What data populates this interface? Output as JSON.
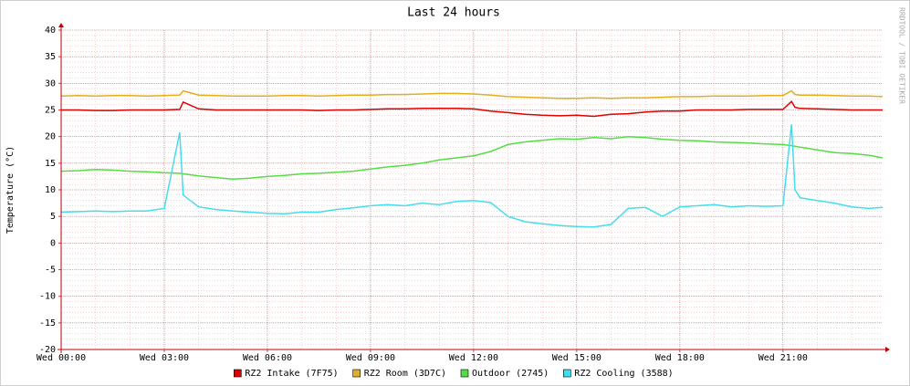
{
  "chart_data": {
    "type": "line",
    "title": "Last 24 hours",
    "y_label": "Temperature (°C)",
    "watermark": "RRDTOOL / TOBI OETIKER",
    "x": [
      0,
      0.5,
      1,
      1.5,
      2,
      2.5,
      3,
      3.45,
      3.55,
      4,
      4.5,
      5,
      5.5,
      6,
      6.5,
      7,
      7.5,
      8,
      8.5,
      9,
      9.5,
      10,
      10.5,
      11,
      11.5,
      12,
      12.5,
      13,
      13.5,
      14,
      14.5,
      15,
      15.5,
      16,
      16.5,
      17,
      17.5,
      18,
      18.5,
      19,
      19.5,
      20,
      20.5,
      21,
      21.25,
      21.35,
      21.5,
      22,
      22.5,
      23,
      23.5,
      23.9
    ],
    "xlim": [
      0,
      23.9
    ],
    "xticks": [
      {
        "value": 0,
        "label": "Wed 00:00"
      },
      {
        "value": 3,
        "label": "Wed 03:00"
      },
      {
        "value": 6,
        "label": "Wed 06:00"
      },
      {
        "value": 9,
        "label": "Wed 09:00"
      },
      {
        "value": 12,
        "label": "Wed 12:00"
      },
      {
        "value": 15,
        "label": "Wed 15:00"
      },
      {
        "value": 18,
        "label": "Wed 18:00"
      },
      {
        "value": 21,
        "label": "Wed 21:00"
      }
    ],
    "ylim": [
      -20,
      40
    ],
    "yticks": [
      -20,
      -15,
      -10,
      -5,
      0,
      5,
      10,
      15,
      20,
      25,
      30,
      35,
      40
    ],
    "grid": true,
    "legend": "bottom",
    "series": [
      {
        "name": "RZ2 Intake (7F75)",
        "color": "#e00000",
        "values": [
          25,
          25,
          24.9,
          24.9,
          25,
          25,
          25,
          25.1,
          26.5,
          25.2,
          25,
          25,
          25,
          25,
          25,
          25,
          24.9,
          25,
          25,
          25.1,
          25.2,
          25.2,
          25.3,
          25.3,
          25.3,
          25.2,
          24.8,
          24.5,
          24.2,
          24,
          23.9,
          24,
          23.8,
          24.2,
          24.3,
          24.6,
          24.8,
          24.8,
          25,
          25,
          25,
          25.1,
          25.1,
          25.1,
          26.6,
          25.5,
          25.3,
          25.2,
          25.1,
          25,
          25,
          25
        ]
      },
      {
        "name": "RZ2 Room (3D7C)",
        "color": "#e0b020",
        "values": [
          27.6,
          27.7,
          27.6,
          27.7,
          27.7,
          27.6,
          27.7,
          27.8,
          28.6,
          27.8,
          27.7,
          27.6,
          27.6,
          27.6,
          27.7,
          27.7,
          27.6,
          27.7,
          27.8,
          27.8,
          27.9,
          27.9,
          28,
          28.1,
          28.1,
          28,
          27.8,
          27.5,
          27.4,
          27.3,
          27.2,
          27.2,
          27.3,
          27.2,
          27.3,
          27.3,
          27.4,
          27.5,
          27.5,
          27.6,
          27.6,
          27.6,
          27.7,
          27.7,
          28.6,
          27.9,
          27.8,
          27.8,
          27.7,
          27.6,
          27.6,
          27.5
        ]
      },
      {
        "name": "Outdoor (2745)",
        "color": "#55dd44",
        "values": [
          13.5,
          13.6,
          13.8,
          13.7,
          13.5,
          13.4,
          13.2,
          13.1,
          13,
          12.6,
          12.3,
          12,
          12.2,
          12.5,
          12.7,
          13,
          13.1,
          13.3,
          13.5,
          13.9,
          14.3,
          14.6,
          15,
          15.6,
          16,
          16.4,
          17.2,
          18.5,
          19,
          19.3,
          19.6,
          19.5,
          19.8,
          19.6,
          20,
          19.8,
          19.5,
          19.3,
          19.2,
          19,
          18.9,
          18.8,
          18.6,
          18.5,
          18.3,
          18.2,
          18,
          17.5,
          17,
          16.8,
          16.5,
          16
        ]
      },
      {
        "name": "RZ2 Cooling (3588)",
        "color": "#44ddee",
        "values": [
          5.8,
          5.9,
          6,
          5.9,
          6,
          6,
          6.5,
          20.8,
          9,
          6.8,
          6.3,
          6,
          5.8,
          5.6,
          5.5,
          5.8,
          5.8,
          6.3,
          6.6,
          7,
          7.2,
          7,
          7.5,
          7.2,
          7.8,
          8,
          7.6,
          5,
          4,
          3.6,
          3.3,
          3.1,
          3,
          3.5,
          6.5,
          6.7,
          5,
          6.8,
          7,
          7.2,
          6.8,
          7,
          6.9,
          7,
          22.3,
          10,
          8.5,
          8,
          7.5,
          6.8,
          6.5,
          6.7
        ]
      }
    ]
  }
}
